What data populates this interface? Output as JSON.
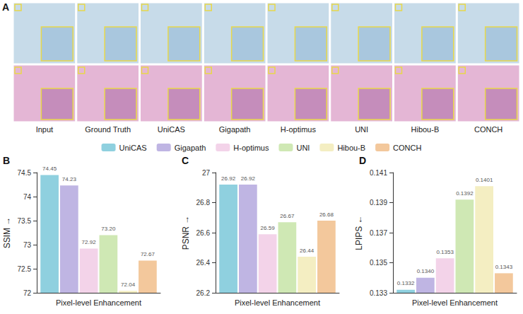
{
  "figure": {
    "image_panel": {
      "letter": "A",
      "columns": [
        "Input",
        "Ground Truth",
        "UniCAS",
        "Gigapath",
        "H-optimus",
        "UNI",
        "Hibou-B",
        "CONCH"
      ]
    },
    "chart_letters": [
      "B",
      "C",
      "D"
    ]
  },
  "chart_data": [
    {
      "type": "bar",
      "categories": [
        "Pixel-level Enhancement"
      ],
      "y_label": "SSIM →",
      "ylim": [
        72,
        74.5
      ],
      "yticks": [
        72,
        72.5,
        73,
        73.5,
        74,
        74.5
      ],
      "grid": false,
      "data_labels": true,
      "legend": "top",
      "series": [
        {
          "name": "UniCAS",
          "color": "#8fd0df",
          "values": [
            74.45
          ]
        },
        {
          "name": "Gigapath",
          "color": "#bfb5e3",
          "values": [
            74.23
          ]
        },
        {
          "name": "H-optimus",
          "color": "#f3d3e9",
          "values": [
            72.92
          ]
        },
        {
          "name": "UNI",
          "color": "#cfe8b4",
          "values": [
            73.2
          ],
          "value_labels": [
            "73.20"
          ]
        },
        {
          "name": "Hibou-B",
          "color": "#f4eec2",
          "values": [
            72.04
          ]
        },
        {
          "name": "CONCH",
          "color": "#f3c89c",
          "values": [
            72.67
          ]
        }
      ]
    },
    {
      "type": "bar",
      "categories": [
        "Pixel-level Enhancement"
      ],
      "y_label": "PSNR →",
      "ylim": [
        26.2,
        27
      ],
      "yticks": [
        26.2,
        26.4,
        26.6,
        26.8,
        27
      ],
      "grid": false,
      "data_labels": true,
      "legend": "top",
      "series": [
        {
          "name": "UniCAS",
          "color": "#8fd0df",
          "values": [
            26.92
          ]
        },
        {
          "name": "Gigapath",
          "color": "#bfb5e3",
          "values": [
            26.92
          ]
        },
        {
          "name": "H-optimus",
          "color": "#f3d3e9",
          "values": [
            26.59
          ]
        },
        {
          "name": "UNI",
          "color": "#cfe8b4",
          "values": [
            26.67
          ]
        },
        {
          "name": "Hibou-B",
          "color": "#f4eec2",
          "values": [
            26.44
          ]
        },
        {
          "name": "CONCH",
          "color": "#f3c89c",
          "values": [
            26.68
          ]
        }
      ]
    },
    {
      "type": "bar",
      "categories": [
        "Pixel-level Enhancement"
      ],
      "y_label": "LPIPS ←",
      "ylim": [
        0.133,
        0.141
      ],
      "yticks": [
        0.133,
        0.135,
        0.137,
        0.139,
        0.141
      ],
      "grid": false,
      "data_labels": true,
      "legend": "top",
      "series": [
        {
          "name": "UniCAS",
          "color": "#8fd0df",
          "values": [
            0.1332
          ]
        },
        {
          "name": "Gigapath",
          "color": "#bfb5e3",
          "values": [
            0.134
          ],
          "value_labels": [
            "0.1340"
          ]
        },
        {
          "name": "H-optimus",
          "color": "#f3d3e9",
          "values": [
            0.1353
          ]
        },
        {
          "name": "UNI",
          "color": "#cfe8b4",
          "values": [
            0.1392
          ]
        },
        {
          "name": "Hibou-B",
          "color": "#f4eec2",
          "values": [
            0.1401
          ]
        },
        {
          "name": "CONCH",
          "color": "#f3c89c",
          "values": [
            0.1343
          ]
        }
      ]
    }
  ]
}
